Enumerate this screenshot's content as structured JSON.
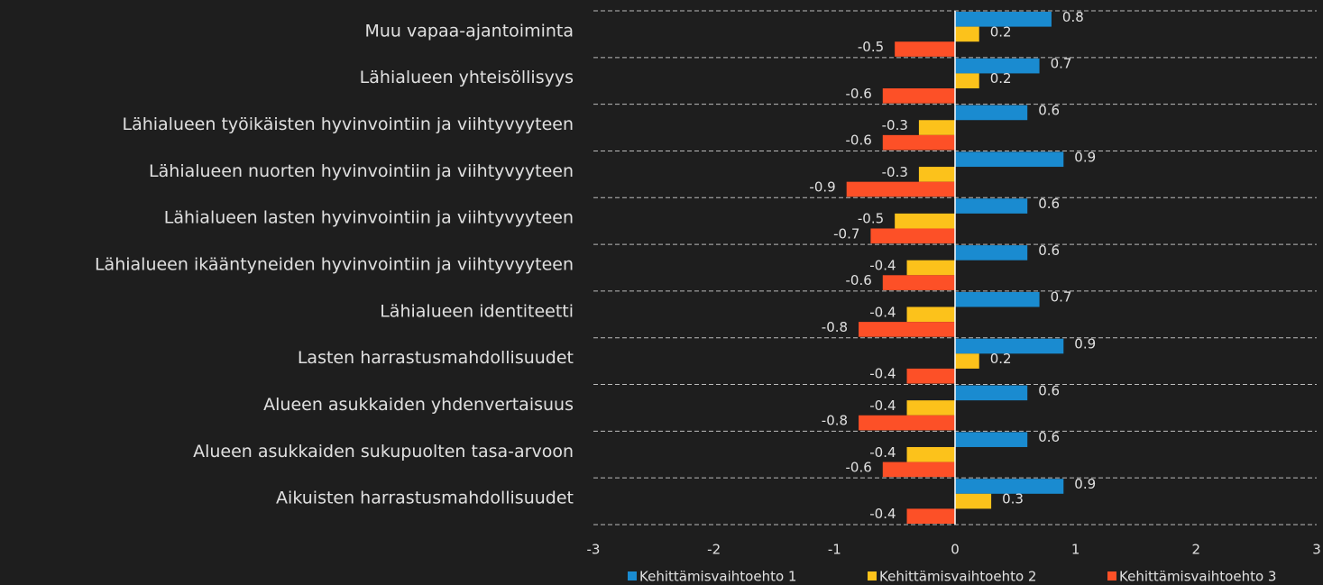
{
  "chart_data": {
    "type": "bar",
    "orientation": "horizontal",
    "categories": [
      "Muu vapaa-ajantoiminta",
      "Lähialueen yhteisöllisyys",
      "Lähialueen työikäisten hyvinvointiin ja viihtyvyyteen",
      "Lähialueen nuorten hyvinvointiin ja viihtyvyyteen",
      "Lähialueen lasten hyvinvointiin ja viihtyvyyteen",
      "Lähialueen ikääntyneiden hyvinvointiin ja viihtyvyyteen",
      "Lähialueen identiteetti",
      "Lasten harrastusmahdollisuudet",
      "Alueen asukkaiden yhdenvertaisuus",
      "Alueen asukkaiden sukupuolten tasa-arvoon",
      "Aikuisten harrastusmahdollisuudet"
    ],
    "series": [
      {
        "name": "Kehittämisvaihtoehto 1",
        "color": "#1a8bd0",
        "values": [
          0.8,
          0.7,
          0.6,
          0.9,
          0.6,
          0.6,
          0.7,
          0.9,
          0.6,
          0.6,
          0.9
        ]
      },
      {
        "name": "Kehittämisvaihtoehto 2",
        "color": "#fcc21b",
        "values": [
          0.2,
          0.2,
          -0.3,
          -0.3,
          -0.5,
          -0.4,
          -0.4,
          0.2,
          -0.4,
          -0.4,
          0.3
        ]
      },
      {
        "name": "Kehittämisvaihtoehto 3",
        "color": "#fd5027",
        "values": [
          -0.5,
          -0.6,
          -0.6,
          -0.9,
          -0.7,
          -0.6,
          -0.8,
          -0.4,
          -0.8,
          -0.6,
          -0.4
        ]
      }
    ],
    "xlim": [
      -3,
      3
    ],
    "xticks": [
      -3,
      -2,
      -1,
      0,
      1,
      2,
      3
    ],
    "grid": true,
    "legend": "bottom"
  }
}
